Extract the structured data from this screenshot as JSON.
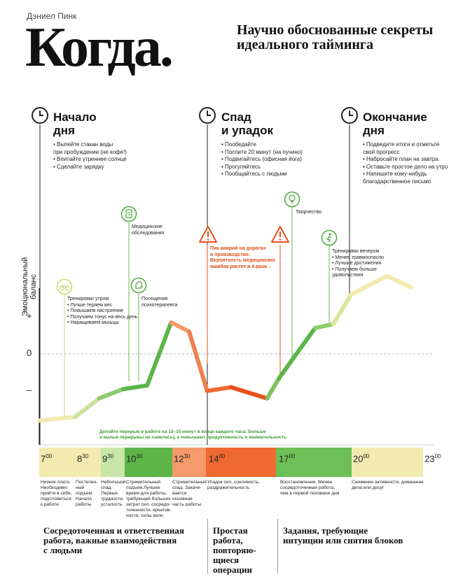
{
  "header": {
    "author": "Дэниел Пинк",
    "title": "Когда.",
    "subtitle": "Научно обоснованные секреты идеального тайминга"
  },
  "phases": [
    {
      "title_line1": "Начало",
      "title_line2": "дня",
      "bullets": [
        "• Выпейте стакан воды",
        "при пробуждении (не кофе!)",
        "• Впитайте утреннее солнце",
        "• Сделайте зарядку"
      ]
    },
    {
      "title_line1": "Спад",
      "title_line2": "и упадок",
      "bullets": [
        "• Пообедайте",
        "• Поспите 20 минут (на пучино)",
        "• Подвигайтесь (офисная йога)",
        "• Прогуляйтесь",
        "• Пообщайтесь с людьми"
      ]
    },
    {
      "title_line1": "Окончание",
      "title_line2": "дня",
      "bullets": [
        "• Подведите итоги и отметьте",
        "свой прогресс",
        "• Набросайте план на завтра",
        "• Оставьте простое дело на утро",
        "• Напишите кому-нибудь",
        "благодарственное письмо"
      ]
    }
  ],
  "annotations": {
    "morning_training": [
      "Тренировки утром",
      "• Лучше теряем вес",
      "• Повышаем настроение",
      "• Получаем тонус на весь день",
      "• Наращиваем мышцы"
    ],
    "medical": [
      "Медицинские",
      "обследования"
    ],
    "physio": [
      "Посещения",
      "психотерапевта"
    ],
    "creativity": "Творчество",
    "evening_training": [
      "Тренировки вечером",
      "• Менее травмоопасно",
      "• Лучшие достижения",
      "• Получаем больше",
      "удовольствия"
    ],
    "warning": [
      "Пик аварий на дорогах",
      "и производстве.",
      "Вероятность медицинских",
      "ошибок растет в 4 раза"
    ],
    "break_note": [
      "Делайте перерыв в работе на 10–15 минут в конце каждого часа. Больше",
      "и малые перерывы не сниклась), а повышают продуктивность и внимательность"
    ]
  },
  "axis": {
    "ylabel_line1": "Эмоциональный",
    "ylabel_line2": "баланс",
    "plus": "+",
    "zero": "0",
    "minus": "–"
  },
  "timeline": [
    {
      "hour": "7",
      "min": "00",
      "desc": [
        "Низкое плато.",
        "Необходимо",
        "прийти в себя,",
        "подготовиться",
        "к работе"
      ]
    },
    {
      "hour": "8",
      "min": "30",
      "desc": [
        "Постепен-",
        "ный",
        "подъем.",
        "Начало",
        "работы"
      ]
    },
    {
      "hour": "9",
      "min": "30",
      "desc": [
        "Небольшой",
        "спад.",
        "Первые",
        "трудности,",
        "усталость"
      ]
    },
    {
      "hour": "10",
      "min": "30",
      "desc": [
        "Стремительный",
        "подъем.Лучшее",
        "время для работы,",
        "требующей больших",
        "затрат сил, сосредо-",
        "точенности, креатив-",
        "ности, силы воли"
      ]
    },
    {
      "hour": "12",
      "min": "30",
      "desc": [
        "Стремительный",
        "спад. Закачи-",
        "вается основная",
        "часть работы"
      ]
    },
    {
      "hour": "14",
      "min": "00",
      "desc": [
        "Упадок сил, сонливость,",
        "раздражительность"
      ]
    },
    {
      "hour": "17",
      "min": "00",
      "desc": [
        "Восстановление. Менее",
        "сосредоточенная работа,",
        "чем в первой половине дня"
      ]
    },
    {
      "hour": "20",
      "min": "00",
      "desc": [
        "Снижение активности, домашние",
        "дела или досуг"
      ]
    },
    {
      "hour": "23",
      "min": "00",
      "desc": []
    }
  ],
  "tasks": [
    {
      "lines": [
        "Сосредоточенная и ответственная",
        "работа, важные взаимодействия",
        "с людьми"
      ]
    },
    {
      "lines": [
        "Простая",
        "работа,",
        "повторяю-",
        "щиеся",
        "операции"
      ]
    },
    {
      "lines": [
        "Задания, требующие",
        "интуиции или снятия блоков"
      ]
    }
  ],
  "colors": {
    "pale_yellow": "#f3eab0",
    "light_green": "#a8d888",
    "green": "#5db548",
    "orange_light": "#f59a6a",
    "orange": "#ee6a30",
    "deep_orange": "#e8501c",
    "icon_green": "#4aa83a",
    "warning_orange": "#e8501c"
  },
  "chart_data": {
    "type": "line",
    "title": "",
    "xlabel": "",
    "ylabel": "Эмоциональный баланс",
    "x": [
      "7:00",
      "8:30",
      "9:30",
      "10:30",
      "11:30",
      "12:30",
      "13:15",
      "14:00",
      "15:00",
      "16:30",
      "17:00",
      "18:30",
      "19:15",
      "20:00",
      "21:30",
      "22:30"
    ],
    "values": [
      -1.8,
      -1.7,
      -1.2,
      -0.95,
      -0.85,
      0.85,
      0.6,
      -1.0,
      -0.9,
      -1.2,
      -0.65,
      0.7,
      0.8,
      1.6,
      2.1,
      1.8
    ]
  }
}
